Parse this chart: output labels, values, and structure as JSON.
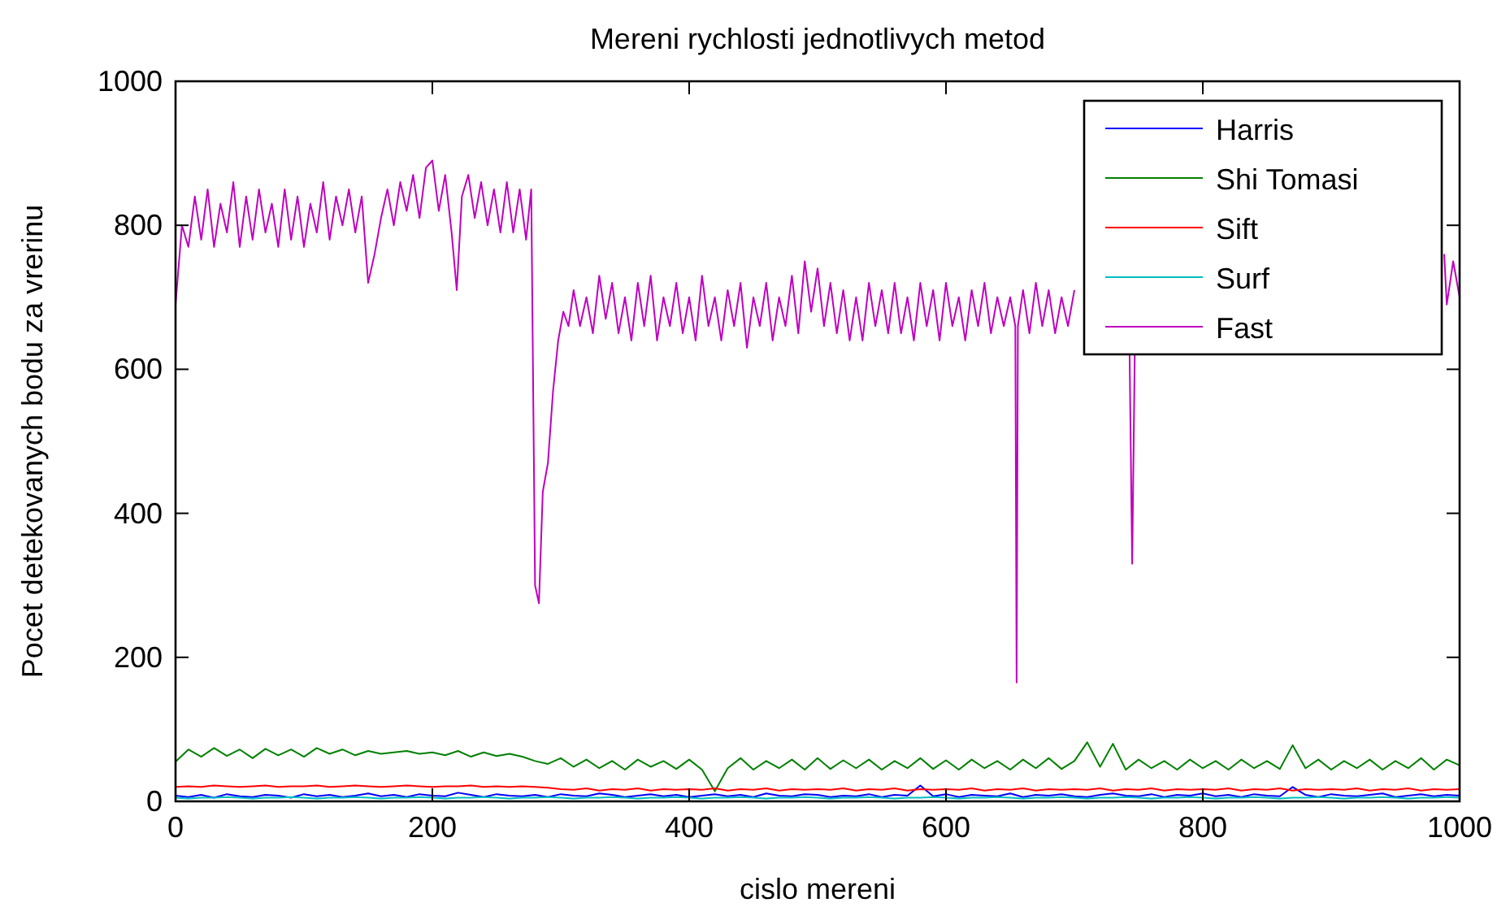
{
  "chart_data": {
    "type": "line",
    "title": "Mereni rychlosti jednotlivych metod",
    "xlabel": "cislo mereni",
    "ylabel": "Pocet detekovanych bodu za vrerinu",
    "xlim": [
      0,
      1000
    ],
    "xticks": [
      0,
      200,
      400,
      600,
      800,
      1000
    ],
    "ylim": [
      0,
      1000
    ],
    "yticks": [
      0,
      200,
      400,
      600,
      800,
      1000
    ],
    "legend": "top right",
    "x": [
      0,
      10,
      20,
      30,
      40,
      50,
      60,
      70,
      80,
      90,
      100,
      110,
      120,
      130,
      140,
      150,
      160,
      170,
      180,
      190,
      200,
      210,
      220,
      230,
      240,
      250,
      260,
      270,
      280,
      290,
      300,
      310,
      320,
      330,
      340,
      350,
      360,
      370,
      380,
      390,
      400,
      410,
      420,
      430,
      440,
      450,
      460,
      470,
      480,
      490,
      500,
      510,
      520,
      530,
      540,
      550,
      560,
      570,
      580,
      590,
      600,
      610,
      620,
      630,
      640,
      650,
      660,
      670,
      680,
      690,
      700,
      710,
      720,
      730,
      740,
      750,
      760,
      770,
      780,
      790,
      800,
      810,
      820,
      830,
      840,
      850,
      860,
      870,
      880,
      890,
      900,
      910,
      920,
      930,
      940,
      950,
      960,
      970,
      980,
      990,
      1000
    ],
    "series": [
      {
        "name": "Harris",
        "color": "#0000ff",
        "values": [
          8,
          6,
          9,
          5,
          10,
          7,
          6,
          9,
          8,
          5,
          10,
          7,
          9,
          6,
          8,
          11,
          7,
          9,
          6,
          10,
          8,
          7,
          12,
          9,
          6,
          10,
          8,
          7,
          9,
          6,
          10,
          8,
          7,
          11,
          9,
          6,
          8,
          10,
          7,
          9,
          6,
          8,
          10,
          7,
          9,
          6,
          11,
          8,
          7,
          10,
          9,
          6,
          8,
          7,
          10,
          6,
          9,
          8,
          22,
          7,
          10,
          6,
          9,
          8,
          7,
          11,
          6,
          9,
          8,
          10,
          7,
          6,
          9,
          11,
          8,
          7,
          10,
          6,
          9,
          8,
          11,
          7,
          9,
          6,
          10,
          8,
          7,
          20,
          9,
          6,
          10,
          8,
          7,
          9,
          11,
          6,
          8,
          10,
          7,
          9,
          8
        ]
      },
      {
        "name": "Shi Tomasi",
        "color": "#008000",
        "values": [
          55,
          72,
          62,
          74,
          63,
          72,
          60,
          73,
          64,
          72,
          62,
          74,
          66,
          72,
          64,
          70,
          66,
          68,
          70,
          66,
          68,
          64,
          70,
          62,
          68,
          63,
          66,
          62,
          56,
          52,
          60,
          48,
          58,
          46,
          56,
          44,
          58,
          48,
          56,
          45,
          58,
          44,
          14,
          46,
          60,
          44,
          56,
          46,
          58,
          44,
          60,
          45,
          57,
          46,
          58,
          44,
          56,
          46,
          60,
          45,
          57,
          44,
          58,
          46,
          56,
          44,
          58,
          46,
          60,
          45,
          56,
          82,
          48,
          80,
          44,
          58,
          46,
          56,
          44,
          58,
          46,
          56,
          44,
          58,
          46,
          56,
          45,
          78,
          46,
          58,
          44,
          56,
          46,
          58,
          44,
          56,
          46,
          60,
          44,
          58,
          50
        ]
      },
      {
        "name": "Sift",
        "color": "#ff0000",
        "values": [
          20,
          21,
          20,
          22,
          21,
          20,
          21,
          22,
          20,
          21,
          21,
          22,
          20,
          21,
          22,
          21,
          20,
          21,
          22,
          21,
          20,
          21,
          21,
          22,
          20,
          21,
          20,
          21,
          20,
          19,
          17,
          16,
          18,
          15,
          17,
          16,
          18,
          15,
          17,
          16,
          17,
          16,
          18,
          15,
          17,
          16,
          18,
          15,
          17,
          16,
          17,
          16,
          18,
          15,
          17,
          16,
          18,
          15,
          17,
          16,
          17,
          16,
          18,
          15,
          17,
          16,
          18,
          15,
          17,
          16,
          17,
          16,
          18,
          15,
          17,
          16,
          18,
          15,
          17,
          16,
          17,
          16,
          18,
          15,
          17,
          16,
          18,
          15,
          17,
          16,
          17,
          16,
          18,
          15,
          17,
          16,
          18,
          15,
          17,
          16,
          17
        ]
      },
      {
        "name": "Surf",
        "color": "#00bfbf",
        "values": [
          5,
          4,
          5,
          5,
          6,
          5,
          4,
          5,
          5,
          6,
          5,
          4,
          5,
          5,
          6,
          5,
          4,
          5,
          5,
          6,
          5,
          4,
          5,
          5,
          6,
          5,
          4,
          5,
          5,
          6,
          5,
          4,
          5,
          5,
          6,
          5,
          4,
          5,
          5,
          6,
          5,
          4,
          5,
          5,
          6,
          5,
          4,
          5,
          5,
          6,
          5,
          4,
          5,
          5,
          6,
          5,
          4,
          5,
          5,
          6,
          5,
          4,
          5,
          5,
          6,
          5,
          4,
          5,
          5,
          6,
          5,
          4,
          5,
          5,
          6,
          5,
          4,
          5,
          5,
          6,
          5,
          4,
          5,
          5,
          6,
          5,
          4,
          5,
          5,
          6,
          5,
          4,
          5,
          5,
          6,
          5,
          4,
          5,
          5,
          6,
          5
        ]
      },
      {
        "name": "Fast",
        "color": "#bf00bf",
        "x": [
          0,
          5,
          10,
          15,
          20,
          25,
          30,
          35,
          40,
          45,
          50,
          55,
          60,
          65,
          70,
          75,
          80,
          85,
          90,
          95,
          100,
          105,
          110,
          115,
          120,
          125,
          130,
          135,
          140,
          145,
          150,
          155,
          160,
          165,
          170,
          175,
          180,
          185,
          190,
          195,
          200,
          205,
          210,
          215,
          219,
          223,
          228,
          233,
          238,
          243,
          248,
          253,
          258,
          263,
          268,
          273,
          277,
          280,
          283,
          286,
          290,
          294,
          298,
          302,
          306,
          310,
          315,
          320,
          325,
          330,
          335,
          340,
          345,
          350,
          355,
          360,
          365,
          370,
          375,
          380,
          385,
          390,
          395,
          400,
          405,
          410,
          415,
          420,
          425,
          430,
          435,
          440,
          445,
          450,
          455,
          460,
          465,
          470,
          475,
          480,
          485,
          490,
          495,
          500,
          505,
          510,
          515,
          520,
          525,
          530,
          535,
          540,
          545,
          550,
          555,
          560,
          565,
          570,
          575,
          580,
          585,
          590,
          595,
          600,
          605,
          610,
          615,
          620,
          625,
          630,
          635,
          640,
          645,
          650,
          654,
          655,
          656,
          660,
          665,
          670,
          675,
          680,
          685,
          690,
          695,
          700,
          705,
          743,
          745,
          747,
          750,
          985,
          988,
          990,
          995,
          1000
        ],
        "values": [
          690,
          800,
          770,
          840,
          780,
          850,
          770,
          830,
          790,
          860,
          770,
          840,
          780,
          850,
          790,
          830,
          770,
          850,
          780,
          840,
          770,
          830,
          790,
          860,
          780,
          840,
          800,
          850,
          790,
          840,
          720,
          760,
          810,
          850,
          800,
          860,
          820,
          870,
          810,
          880,
          890,
          820,
          870,
          790,
          710,
          840,
          870,
          810,
          860,
          800,
          850,
          790,
          860,
          790,
          850,
          780,
          850,
          300,
          275,
          430,
          470,
          570,
          640,
          680,
          660,
          710,
          660,
          700,
          650,
          730,
          670,
          720,
          650,
          700,
          640,
          720,
          660,
          730,
          640,
          700,
          660,
          720,
          650,
          700,
          640,
          730,
          660,
          700,
          640,
          710,
          660,
          720,
          630,
          700,
          660,
          720,
          640,
          700,
          660,
          730,
          650,
          750,
          680,
          740,
          660,
          720,
          650,
          710,
          640,
          700,
          640,
          720,
          660,
          710,
          650,
          720,
          650,
          700,
          640,
          720,
          660,
          710,
          640,
          720,
          660,
          700,
          640,
          710,
          660,
          720,
          650,
          700,
          660,
          700,
          660,
          165,
          660,
          710,
          650,
          720,
          660,
          710,
          650,
          700,
          660,
          710,
          null,
          620,
          330,
          620,
          null,
          null,
          760,
          690,
          750,
          700
        ]
      }
    ]
  }
}
